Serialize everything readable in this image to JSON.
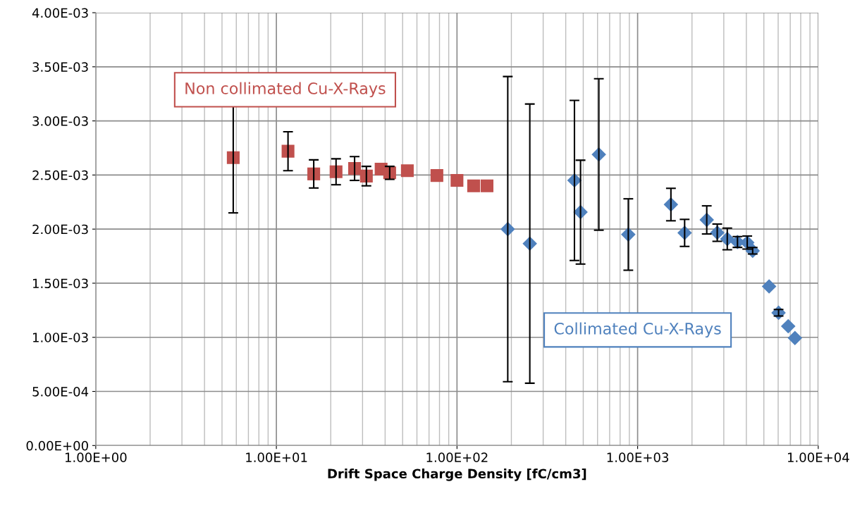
{
  "chart_data": {
    "type": "scatter",
    "xlabel": "Drift Space Charge Density [fC/cm3]",
    "log": "x",
    "grid": true,
    "legend": false,
    "xlim": [
      1,
      10000
    ],
    "xticks": [
      {
        "value": 1,
        "label": "1.00E+00"
      },
      {
        "value": 10,
        "label": "1.00E+01"
      },
      {
        "value": 100,
        "label": "1.00E+02"
      },
      {
        "value": 1000,
        "label": "1.00E+03"
      },
      {
        "value": 10000,
        "label": "1.00E+04"
      }
    ],
    "ylim": [
      0,
      0.004
    ],
    "yticks": [
      {
        "value": 0,
        "label": "0.00E+00"
      },
      {
        "value": 0.0005,
        "label": "5.00E-04"
      },
      {
        "value": 0.001,
        "label": "1.00E-03"
      },
      {
        "value": 0.0015,
        "label": "1.50E-03"
      },
      {
        "value": 0.002,
        "label": "2.00E-03"
      },
      {
        "value": 0.0025,
        "label": "2.50E-03"
      },
      {
        "value": 0.003,
        "label": "3.00E-03"
      },
      {
        "value": 0.0035,
        "label": "3.50E-03"
      },
      {
        "value": 0.004,
        "label": "4.00E-03"
      }
    ],
    "series": [
      {
        "name": "Non collimated Cu-X-Rays",
        "color": "#c0504d",
        "marker": "square",
        "x": [
          5.77,
          11.6,
          16.1,
          21.4,
          27.1,
          31.5,
          38.0,
          42.4,
          53.1,
          77.4,
          100,
          123.6,
          146.6
        ],
        "values": [
          0.00266,
          0.00272,
          0.00251,
          0.00253,
          0.00256,
          0.00249,
          0.002555,
          0.00252,
          0.00254,
          0.002495,
          0.00245,
          0.0024,
          0.0024
        ],
        "errors": [
          0.00051,
          0.00018,
          0.00013,
          0.00012,
          0.00011,
          9e-05,
          null,
          6e-05,
          null,
          null,
          null,
          null,
          null
        ]
      },
      {
        "name": "Collimated Cu-X-Rays",
        "color": "#4f81bd",
        "marker": "diamond",
        "x": [
          191,
          253,
          447,
          483,
          610,
          888,
          1529,
          1821,
          2414,
          2760,
          3136,
          3572,
          4045,
          4335,
          5345,
          6030,
          6820,
          7430
        ],
        "values": [
          0.002,
          0.001866,
          0.00245,
          0.002157,
          0.00269,
          0.00195,
          0.002227,
          0.001965,
          0.002085,
          0.001967,
          0.001909,
          0.001881,
          0.001876,
          0.0018,
          0.00147,
          0.001227,
          0.001103,
          0.000993
        ],
        "errors": [
          0.00141,
          0.00129,
          0.00074,
          0.00048,
          0.0007,
          0.00033,
          0.00015,
          0.000125,
          0.00013,
          8e-05,
          0.0001,
          5e-05,
          6e-05,
          3e-05,
          null,
          3e-05,
          null,
          null
        ]
      }
    ]
  }
}
